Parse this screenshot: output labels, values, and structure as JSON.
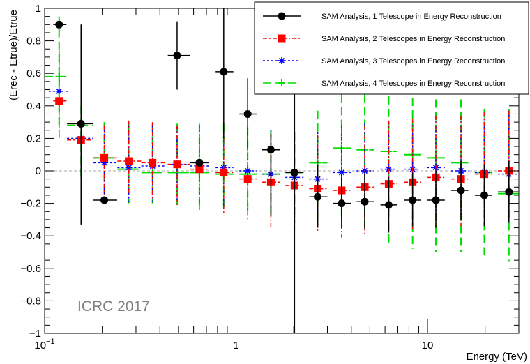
{
  "chart_data": {
    "type": "scatter",
    "title": "",
    "xlabel": "Energy (TeV)",
    "ylabel": "(Erec - Etrue)/Etrue",
    "xscale": "log",
    "xlim": [
      0.1,
      30
    ],
    "ylim": [
      -1,
      1
    ],
    "x_ticks": [
      {
        "label": "10",
        "sup": "−1",
        "value": 0.1
      },
      {
        "label": "1",
        "sup": "",
        "value": 1
      },
      {
        "label": "10",
        "sup": "",
        "value": 10
      }
    ],
    "y_ticks": [
      "1",
      "0.8",
      "0.6",
      "0.4",
      "0.2",
      "0",
      "−0.2",
      "−0.4",
      "−0.6",
      "−0.8",
      "−1"
    ],
    "reference_line": 0,
    "annotation": "ICRC 2017",
    "legend_position": "top-right",
    "series": [
      {
        "name": "SAM Analysis, 1 Telescope in Energy Reconstruction",
        "color": "#000000",
        "marker": "circle",
        "line": "solid",
        "x": [
          0.119,
          0.155,
          0.205,
          0.643,
          0.492,
          0.862,
          1.15,
          1.52,
          2.02,
          2.67,
          3.56,
          4.7,
          6.27,
          8.36,
          11.06,
          14.96,
          19.8,
          26.63
        ],
        "xlo": [
          0.111,
          0.131,
          0.18,
          0.574,
          0.44,
          0.782,
          1.04,
          1.37,
          1.81,
          2.41,
          3.2,
          4.26,
          5.68,
          7.52,
          9.92,
          13.3,
          17.67,
          23.33
        ],
        "xhi": [
          0.13,
          0.18,
          0.239,
          0.72,
          0.574,
          0.968,
          1.29,
          1.7,
          2.25,
          3.0,
          3.98,
          5.26,
          6.97,
          9.22,
          12.31,
          16.34,
          21.82,
          29.95
        ],
        "y": [
          0.9,
          0.29,
          -0.18,
          0.05,
          0.71,
          0.61,
          0.35,
          0.13,
          -0.01,
          -0.16,
          -0.2,
          -0.19,
          -0.21,
          -0.18,
          -0.18,
          -0.12,
          -0.15,
          -0.13
        ],
        "ylo": [
          0.9,
          -0.33,
          -0.18,
          0.05,
          0.5,
          0.2,
          0.13,
          -0.28,
          -1.0,
          -0.35,
          -0.35,
          -0.36,
          -0.38,
          -0.34,
          -0.35,
          -0.3,
          -0.34,
          -0.32
        ],
        "yhi": [
          0.9,
          0.9,
          -0.18,
          0.05,
          0.92,
          1.0,
          0.57,
          0.23,
          1.0,
          0.04,
          -0.04,
          -0.02,
          -0.04,
          -0.01,
          0.0,
          0.06,
          0.04,
          0.06
        ]
      },
      {
        "name": "SAM Analysis, 2 Telescopes in Energy Reconstruction",
        "color": "#ff0000",
        "marker": "square",
        "line": "dashdot",
        "x": [
          0.119,
          0.155,
          0.205,
          0.275,
          0.366,
          0.492,
          0.643,
          0.862,
          1.15,
          1.52,
          2.02,
          2.67,
          3.56,
          4.7,
          6.27,
          8.36,
          11.06,
          14.96,
          19.8,
          26.63
        ],
        "xlo": [
          0.111,
          0.131,
          0.18,
          0.24,
          0.32,
          0.44,
          0.574,
          0.782,
          1.04,
          1.37,
          1.81,
          2.41,
          3.2,
          4.26,
          5.68,
          7.52,
          9.92,
          13.3,
          17.67,
          23.33
        ],
        "xhi": [
          0.13,
          0.18,
          0.239,
          0.32,
          0.43,
          0.574,
          0.72,
          0.968,
          1.29,
          1.7,
          2.25,
          3.0,
          3.98,
          5.26,
          6.97,
          9.22,
          12.31,
          16.34,
          21.82,
          29.95
        ],
        "y": [
          0.43,
          0.19,
          0.08,
          0.06,
          0.05,
          0.04,
          0.01,
          -0.01,
          -0.05,
          -0.07,
          -0.09,
          -0.11,
          -0.12,
          -0.1,
          -0.08,
          -0.07,
          -0.04,
          -0.05,
          -0.02,
          0.0
        ],
        "ylo": [
          0.2,
          -0.06,
          -0.15,
          -0.15,
          -0.17,
          -0.21,
          -0.24,
          -0.26,
          -0.31,
          -0.35,
          -0.38,
          -0.38,
          -0.41,
          -0.39,
          -0.37,
          -0.36,
          -0.33,
          -0.34,
          -0.3,
          -0.27
        ],
        "yhi": [
          0.73,
          0.34,
          0.28,
          0.31,
          0.3,
          0.28,
          0.26,
          0.27,
          0.23,
          0.22,
          0.2,
          0.22,
          0.27,
          0.28,
          0.31,
          0.32,
          0.34,
          0.34,
          0.36,
          0.37
        ]
      },
      {
        "name": "SAM Analysis, 3 Telescopes in Energy Reconstruction",
        "color": "#0000ff",
        "marker": "star",
        "line": "dotted",
        "x": [
          0.119,
          0.155,
          0.205,
          0.275,
          0.366,
          0.492,
          0.643,
          0.862,
          1.15,
          1.52,
          2.02,
          2.67,
          3.56,
          4.7,
          6.27,
          8.36,
          11.06,
          14.96,
          19.8,
          26.63
        ],
        "xlo": [
          0.105,
          0.131,
          0.18,
          0.24,
          0.32,
          0.44,
          0.574,
          0.782,
          1.04,
          1.37,
          1.81,
          2.41,
          3.2,
          4.26,
          5.68,
          7.52,
          9.92,
          13.3,
          17.67,
          23.33
        ],
        "xhi": [
          0.135,
          0.18,
          0.239,
          0.32,
          0.43,
          0.574,
          0.72,
          0.968,
          1.29,
          1.7,
          2.25,
          3.0,
          3.98,
          5.26,
          6.97,
          9.22,
          12.31,
          16.34,
          21.82,
          29.95
        ],
        "y": [
          0.49,
          0.2,
          0.05,
          0.02,
          0.03,
          0.04,
          0.03,
          0.02,
          0.0,
          -0.02,
          -0.04,
          -0.05,
          -0.01,
          0.0,
          0.01,
          0.01,
          0.02,
          0.0,
          -0.01,
          -0.02
        ],
        "ylo": [
          0.2,
          -0.05,
          -0.17,
          -0.19,
          -0.19,
          -0.19,
          -0.21,
          -0.22,
          -0.25,
          -0.28,
          -0.3,
          -0.32,
          -0.29,
          -0.28,
          -0.27,
          -0.26,
          -0.25,
          -0.27,
          -0.29,
          -0.3
        ],
        "yhi": [
          0.74,
          0.38,
          0.28,
          0.28,
          0.28,
          0.27,
          0.28,
          0.29,
          0.26,
          0.25,
          0.24,
          0.24,
          0.28,
          0.29,
          0.3,
          0.31,
          0.33,
          0.33,
          0.35,
          0.37
        ]
      },
      {
        "name": "SAM Analysis, 4 Telescopes in Energy Reconstruction",
        "color": "#00dd00",
        "marker": "cross",
        "line": "dashed",
        "x": [
          0.119,
          0.155,
          0.205,
          0.275,
          0.366,
          0.492,
          0.643,
          0.862,
          1.15,
          1.52,
          2.02,
          2.67,
          3.56,
          4.7,
          6.27,
          8.36,
          11.06,
          14.96,
          19.8,
          26.63
        ],
        "xlo": [
          0.1,
          0.131,
          0.18,
          0.24,
          0.32,
          0.44,
          0.574,
          0.782,
          1.04,
          1.37,
          1.81,
          2.41,
          3.2,
          4.26,
          5.68,
          7.52,
          9.92,
          13.3,
          17.67,
          23.33
        ],
        "xhi": [
          0.135,
          0.18,
          0.239,
          0.32,
          0.43,
          0.574,
          0.72,
          0.968,
          1.29,
          1.7,
          2.25,
          3.0,
          3.98,
          5.26,
          6.97,
          9.22,
          12.31,
          16.34,
          21.82,
          29.95
        ],
        "y": [
          0.58,
          0.28,
          0.08,
          0.01,
          -0.01,
          -0.01,
          -0.01,
          -0.02,
          -0.02,
          -0.02,
          -0.01,
          0.05,
          0.14,
          0.13,
          0.12,
          0.1,
          0.08,
          0.05,
          -0.01,
          -0.14
        ],
        "ylo": [
          0.25,
          -0.05,
          -0.2,
          -0.2,
          -0.2,
          -0.21,
          -0.22,
          -0.24,
          -0.26,
          -0.29,
          -0.32,
          -0.33,
          -0.3,
          -0.35,
          -0.45,
          -0.48,
          -0.5,
          -0.5,
          -0.52,
          -0.56
        ],
        "yhi": [
          0.95,
          0.4,
          0.3,
          0.29,
          0.29,
          0.29,
          0.29,
          0.29,
          0.27,
          0.25,
          0.24,
          0.37,
          0.47,
          0.47,
          0.46,
          0.45,
          0.44,
          0.44,
          0.38,
          0.38
        ]
      }
    ]
  }
}
